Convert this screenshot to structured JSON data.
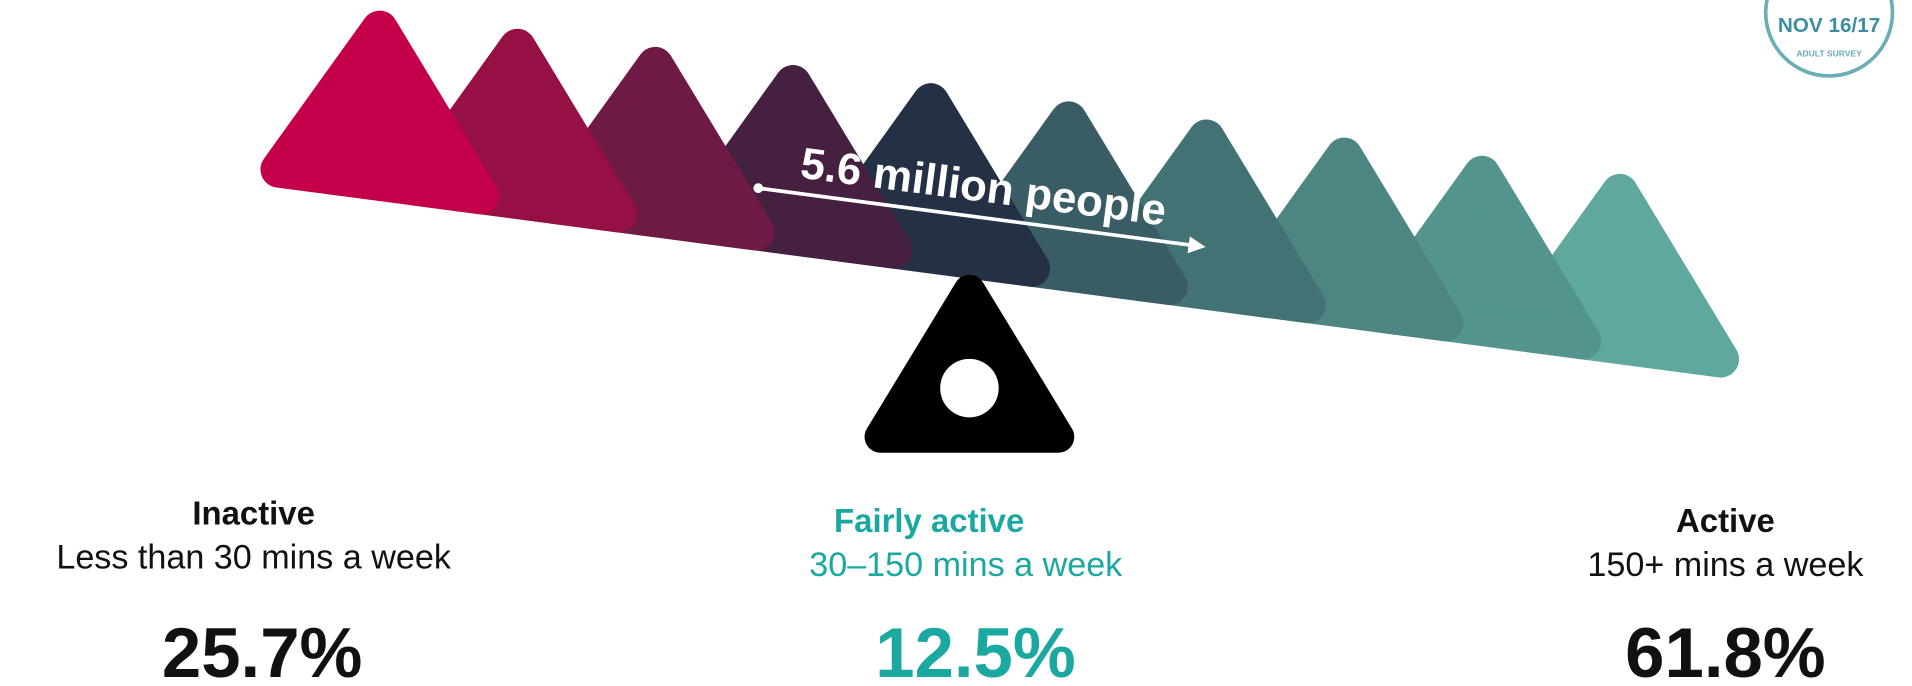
{
  "badge": {
    "date": "NOV 16/17",
    "caption": "ADULT SURVEY"
  },
  "annotation": "5.6 million people",
  "groups": [
    {
      "label": "Inactive",
      "description": "Less than 30 mins a week",
      "percent": "25.7%"
    },
    {
      "label": "Fairly active",
      "description": "30–150 mins a week",
      "percent": "12.5%"
    },
    {
      "label": "Active",
      "description": "150+ mins a week",
      "percent": "61.8%"
    }
  ]
}
